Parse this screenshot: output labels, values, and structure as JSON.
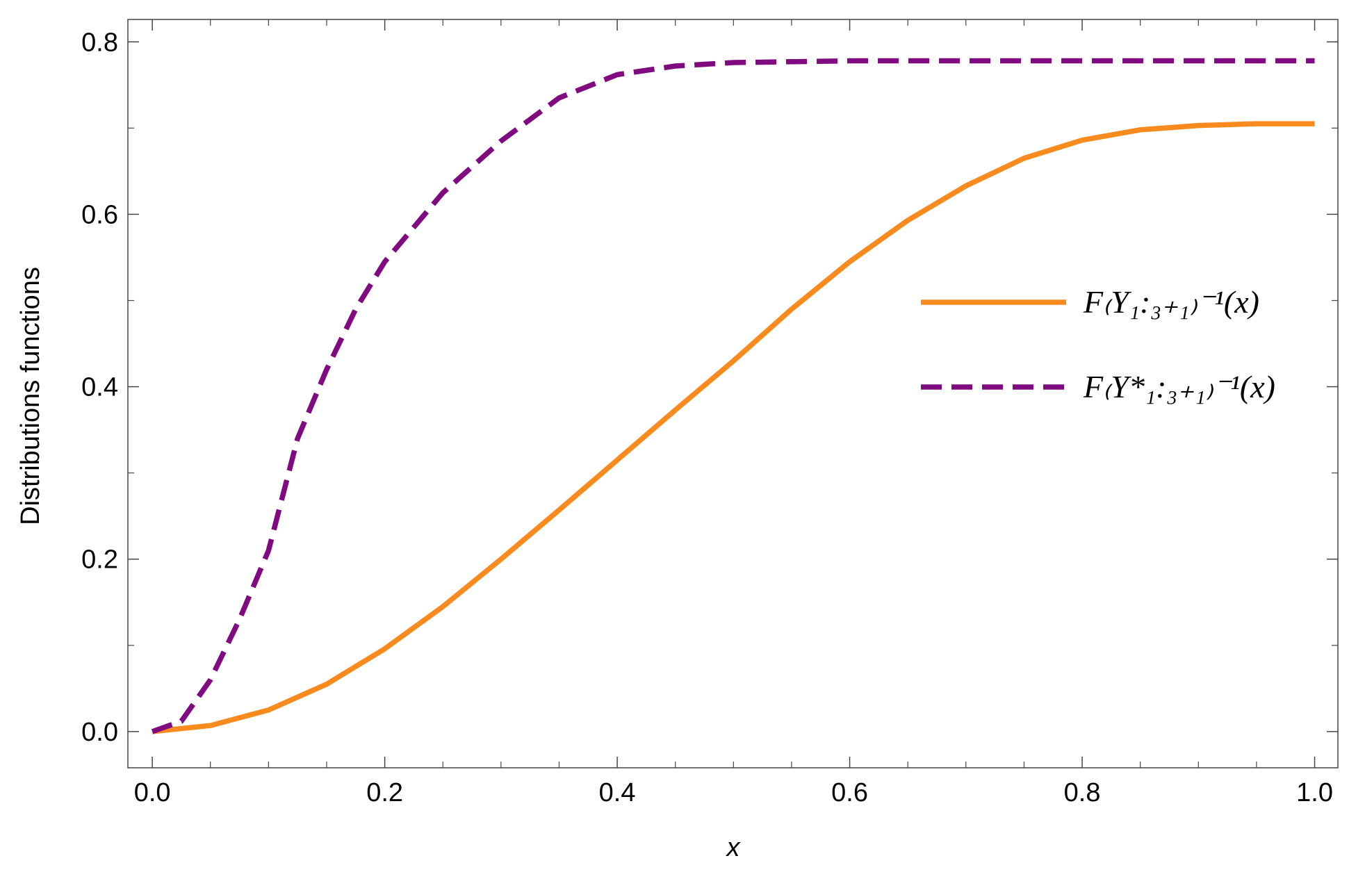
{
  "chart_data": {
    "type": "line",
    "xlabel": "x",
    "ylabel": "Distributions functions",
    "series": [
      {
        "name": "F₍Y₁:₃₊₁₎⁻¹(x)",
        "color": "#f98a1d",
        "dash": false,
        "x": [
          0,
          0.05,
          0.1,
          0.15,
          0.2,
          0.25,
          0.3,
          0.35,
          0.4,
          0.45,
          0.5,
          0.55,
          0.6,
          0.65,
          0.7,
          0.75,
          0.8,
          0.85,
          0.9,
          0.95,
          1
        ],
        "values": [
          0,
          0.007,
          0.025,
          0.055,
          0.096,
          0.145,
          0.2,
          0.257,
          0.315,
          0.373,
          0.43,
          0.49,
          0.545,
          0.593,
          0.633,
          0.665,
          0.686,
          0.698,
          0.703,
          0.705,
          0.705
        ]
      },
      {
        "name": "F₍Y*₁:₃₊₁₎⁻¹(x)",
        "color": "#800a80",
        "dash": true,
        "x": [
          0,
          0.025,
          0.05,
          0.075,
          0.1,
          0.125,
          0.15,
          0.175,
          0.2,
          0.25,
          0.3,
          0.35,
          0.4,
          0.45,
          0.5,
          0.6,
          0.7,
          0.8,
          0.9,
          1
        ],
        "values": [
          0,
          0.012,
          0.06,
          0.13,
          0.21,
          0.34,
          0.42,
          0.49,
          0.545,
          0.625,
          0.685,
          0.735,
          0.762,
          0.772,
          0.776,
          0.778,
          0.778,
          0.778,
          0.778,
          0.778
        ]
      }
    ],
    "xlim": [
      -0.021,
      1.02
    ],
    "ylim": [
      -0.042,
      0.826
    ],
    "xticks": [
      {
        "value": 0,
        "label": "0.0"
      },
      0.2,
      0.4,
      0.6,
      0.8,
      {
        "value": 1,
        "label": "1.0"
      }
    ],
    "yticks": [
      {
        "value": 0,
        "label": "0.0"
      },
      0.2,
      0.4,
      0.6,
      0.8
    ],
    "xminorticks": [
      0.05,
      0.1,
      0.15,
      0.25,
      0.3,
      0.35,
      0.45,
      0.5,
      0.55,
      0.65,
      0.7,
      0.75,
      0.85,
      0.9,
      0.95
    ],
    "yminorticks": [
      0.1,
      0.3,
      0.5,
      0.7
    ],
    "grid": false,
    "legend": "right"
  }
}
